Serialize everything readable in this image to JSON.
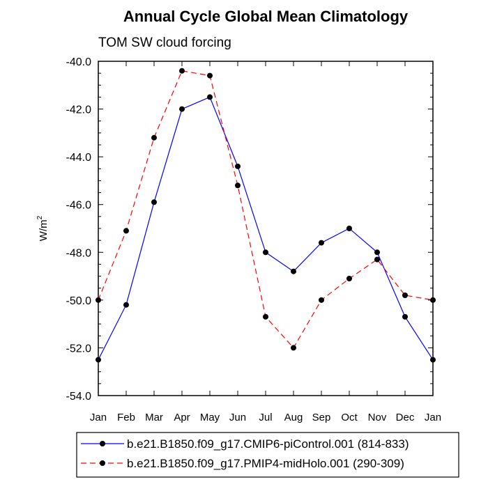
{
  "chart_data": {
    "type": "line",
    "title": "Annual Cycle Global Mean Climatology",
    "subtitle": "TOM SW cloud forcing",
    "ylabel_base": "W/m",
    "ylabel_sup": "2",
    "categories": [
      "Jan",
      "Feb",
      "Mar",
      "Apr",
      "May",
      "Jun",
      "Jul",
      "Aug",
      "Sep",
      "Oct",
      "Nov",
      "Dec",
      "Jan"
    ],
    "ylim": [
      -54.0,
      -40.0
    ],
    "y_ticks": [
      -40.0,
      -42.0,
      -44.0,
      -46.0,
      -48.0,
      -50.0,
      -52.0,
      -54.0
    ],
    "y_tick_labels": [
      "-40.0",
      "-42.0",
      "-44.0",
      "-46.0",
      "-48.0",
      "-50.0",
      "-52.0",
      "-54.0"
    ],
    "grid": false,
    "legend_position": "bottom",
    "series": [
      {
        "name": "b.e21.B1850.f09_g17.CMIP6-piControl.001 (814-833)",
        "color": "#0000ff",
        "dash": "solid",
        "values": [
          -52.5,
          -50.2,
          -45.9,
          -42.0,
          -41.5,
          -44.4,
          -48.0,
          -48.8,
          -47.6,
          -47.0,
          -48.0,
          -50.7,
          -52.5
        ]
      },
      {
        "name": "b.e21.B1850.f09_g17.PMIP4-midHolo.001 (290-309)",
        "color": "#ff0000",
        "dash": "dashed",
        "values": [
          -50.0,
          -47.1,
          -43.2,
          -40.4,
          -40.6,
          -45.2,
          -50.7,
          -52.0,
          -50.0,
          -49.1,
          -48.3,
          -49.8,
          -50.0
        ]
      }
    ]
  }
}
